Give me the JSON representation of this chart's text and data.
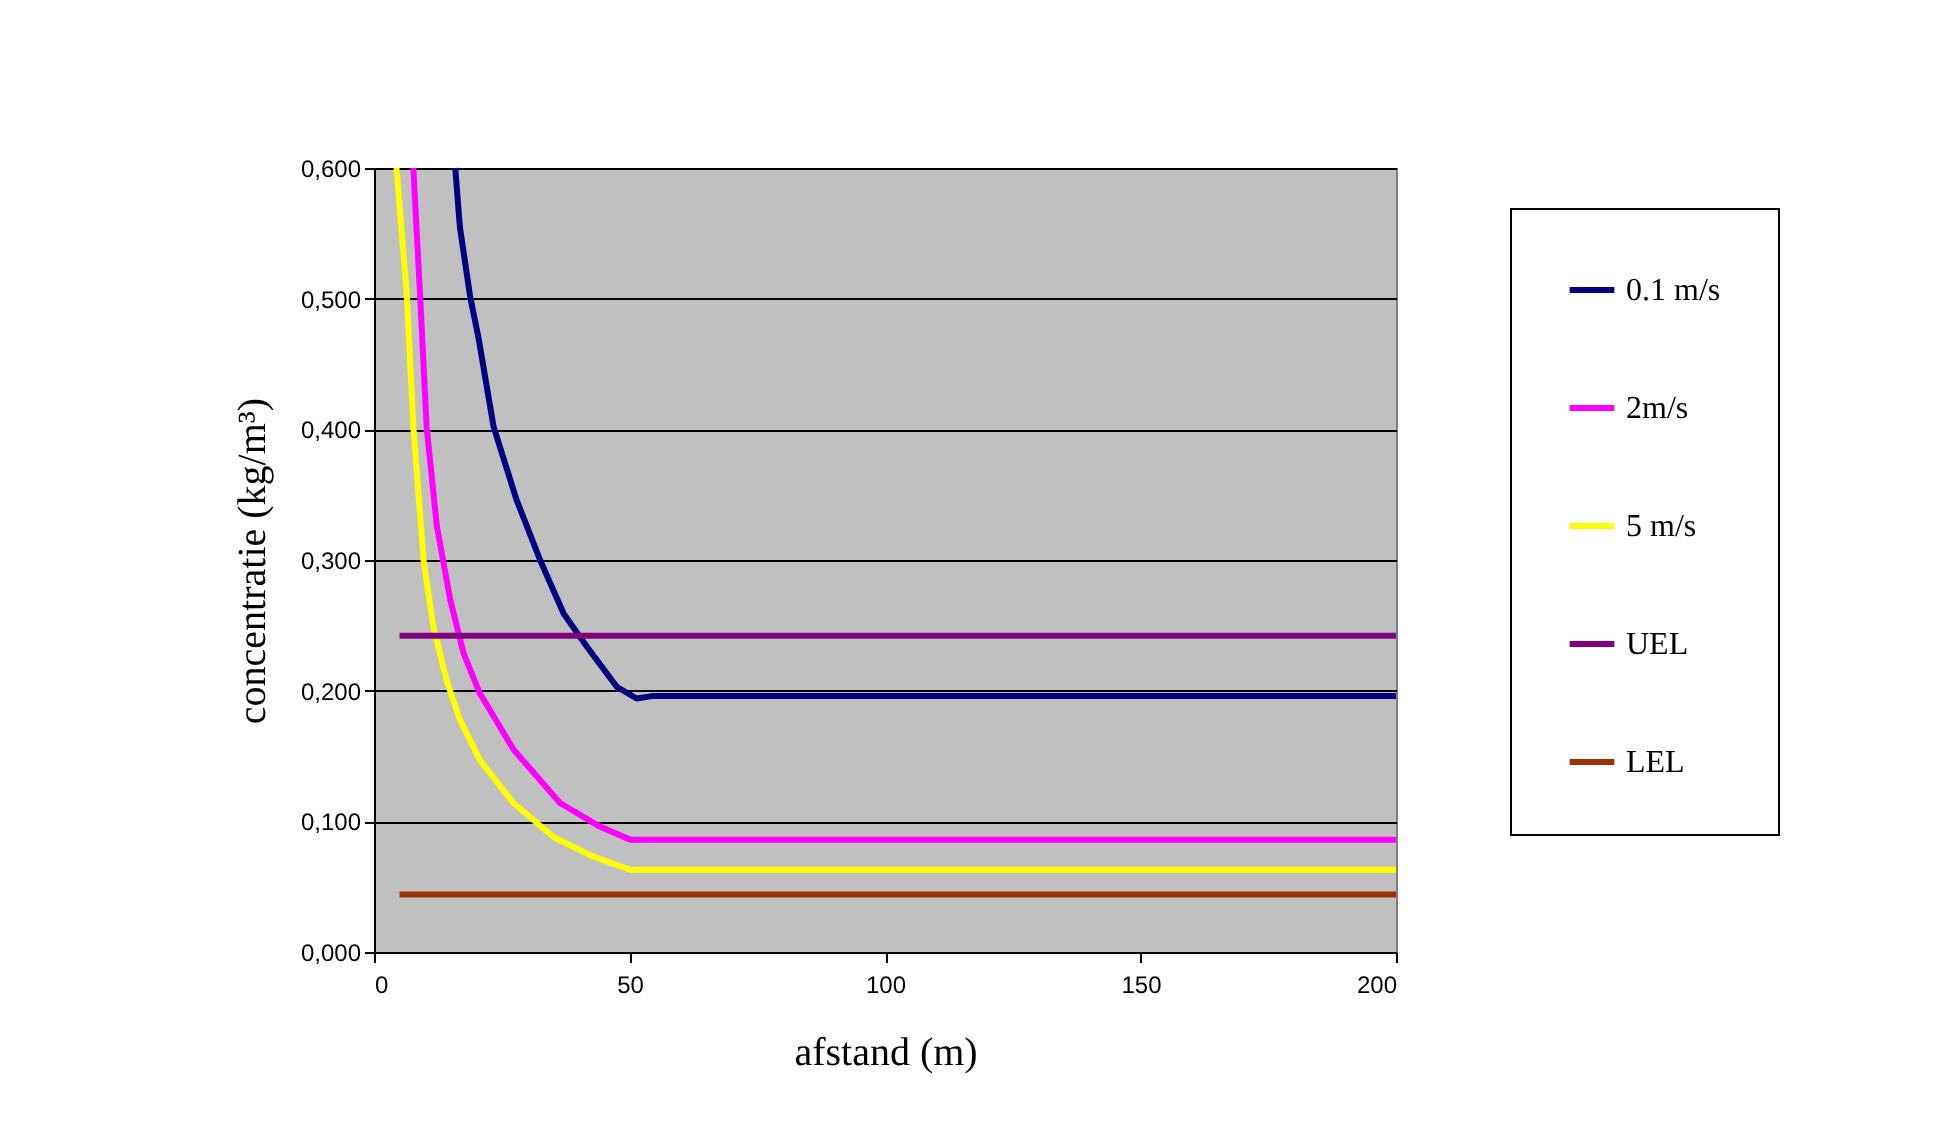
{
  "chart_data": {
    "type": "line",
    "xlabel": "afstand (m)",
    "ylabel": "concentratie (kg/m³)",
    "xlim": [
      0,
      200
    ],
    "xticks": [
      0,
      50,
      100,
      150,
      200
    ],
    "ylim": [
      0,
      0.6
    ],
    "yticks": [
      {
        "value": 0,
        "label": "0,000"
      },
      {
        "value": 0.1,
        "label": "0,100"
      },
      {
        "value": 0.2,
        "label": "0,200"
      },
      {
        "value": 0.3,
        "label": "0,300"
      },
      {
        "value": 0.4,
        "label": "0,400"
      },
      {
        "value": 0.5,
        "label": "0,500"
      },
      {
        "value": 0.6,
        "label": "0,600"
      }
    ],
    "grid": "y",
    "legend": "right",
    "marker": "none",
    "line_style": "solid",
    "series": [
      {
        "name": "0.1 m/s",
        "color": "#000080",
        "x": [
          15.9,
          16.8,
          18.8,
          20.5,
          23.4,
          27.9,
          32.5,
          37.1,
          41.6,
          47.5,
          51.4,
          54.7,
          100,
          200
        ],
        "values": [
          0.6,
          0.555,
          0.502,
          0.469,
          0.402,
          0.346,
          0.3,
          0.259,
          0.234,
          0.203,
          0.194,
          0.196,
          0.196,
          0.196
        ]
      },
      {
        "name": "2m/s",
        "color": "#ff00ff",
        "x": [
          7.7,
          9.0,
          10.3,
          12.3,
          14.9,
          17.5,
          20.7,
          27.3,
          36.4,
          44.2,
          50.1,
          100,
          200
        ],
        "values": [
          0.6,
          0.504,
          0.402,
          0.326,
          0.27,
          0.229,
          0.198,
          0.155,
          0.114,
          0.096,
          0.086,
          0.086,
          0.086
        ]
      },
      {
        "name": "5 m/s",
        "color": "#ffff00",
        "x": [
          4.4,
          6.4,
          7.7,
          9.7,
          11.6,
          14.2,
          16.8,
          20.7,
          27.3,
          35.1,
          42.9,
          50.1,
          100,
          200
        ],
        "values": [
          0.6,
          0.504,
          0.402,
          0.3,
          0.249,
          0.208,
          0.178,
          0.147,
          0.114,
          0.088,
          0.073,
          0.063,
          0.063,
          0.063
        ]
      },
      {
        "name": "UEL",
        "color": "#800080",
        "x": [
          5,
          200
        ],
        "values": [
          0.242,
          0.242
        ]
      },
      {
        "name": "LEL",
        "color": "#993300",
        "x": [
          5,
          200
        ],
        "values": [
          0.044,
          0.044
        ]
      }
    ]
  }
}
